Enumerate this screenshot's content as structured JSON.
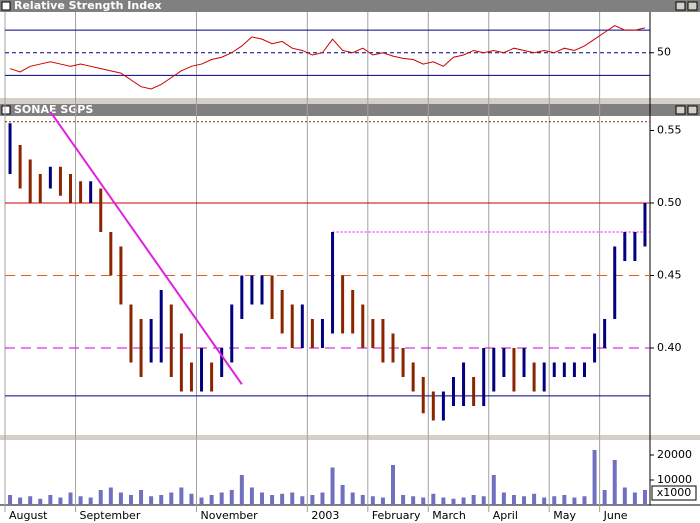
{
  "chart_data": [
    {
      "type": "line",
      "title": "Relative Strength Index",
      "color": "#cc0000",
      "values": [
        36,
        33,
        38,
        40,
        42,
        40,
        38,
        40,
        38,
        36,
        34,
        32,
        26,
        20,
        18,
        22,
        28,
        34,
        38,
        40,
        44,
        46,
        50,
        56,
        64,
        62,
        58,
        60,
        54,
        52,
        48,
        50,
        62,
        52,
        50,
        54,
        48,
        50,
        47,
        45,
        44,
        40,
        42,
        38,
        46,
        48,
        52,
        50,
        52,
        50,
        54,
        52,
        50,
        52,
        50,
        54,
        52,
        56,
        62,
        68,
        74,
        70,
        70,
        72
      ],
      "ylim": [
        10,
        86
      ],
      "yticks": [
        50
      ],
      "lines": [
        {
          "value": 70,
          "color": "#000080",
          "dash": "none"
        },
        {
          "value": 50,
          "color": "#000080",
          "dash": "4,3"
        },
        {
          "value": 30,
          "color": "#000080",
          "dash": "none"
        }
      ]
    },
    {
      "type": "range",
      "title": "SONAE SGPS",
      "up_color": "#000080",
      "down_color": "#8b2500",
      "high": [
        0.555,
        0.54,
        0.53,
        0.52,
        0.525,
        0.525,
        0.52,
        0.515,
        0.515,
        0.51,
        0.48,
        0.47,
        0.43,
        0.42,
        0.42,
        0.44,
        0.43,
        0.41,
        0.39,
        0.4,
        0.39,
        0.4,
        0.43,
        0.45,
        0.45,
        0.45,
        0.45,
        0.44,
        0.43,
        0.43,
        0.42,
        0.42,
        0.48,
        0.45,
        0.44,
        0.43,
        0.42,
        0.42,
        0.41,
        0.4,
        0.39,
        0.38,
        0.37,
        0.37,
        0.38,
        0.39,
        0.38,
        0.4,
        0.4,
        0.4,
        0.4,
        0.4,
        0.39,
        0.39,
        0.39,
        0.39,
        0.39,
        0.39,
        0.41,
        0.42,
        0.47,
        0.48,
        0.48,
        0.5
      ],
      "low": [
        0.52,
        0.51,
        0.5,
        0.5,
        0.51,
        0.505,
        0.5,
        0.5,
        0.5,
        0.48,
        0.45,
        0.43,
        0.39,
        0.38,
        0.39,
        0.39,
        0.38,
        0.37,
        0.37,
        0.37,
        0.37,
        0.38,
        0.39,
        0.42,
        0.43,
        0.43,
        0.42,
        0.41,
        0.4,
        0.4,
        0.4,
        0.4,
        0.41,
        0.41,
        0.41,
        0.4,
        0.4,
        0.39,
        0.39,
        0.38,
        0.37,
        0.355,
        0.35,
        0.35,
        0.36,
        0.36,
        0.36,
        0.36,
        0.37,
        0.38,
        0.37,
        0.38,
        0.37,
        0.37,
        0.38,
        0.38,
        0.38,
        0.38,
        0.39,
        0.4,
        0.42,
        0.46,
        0.46,
        0.47
      ],
      "ylim": [
        0.34,
        0.56
      ],
      "yticks": [
        {
          "value": 0.4,
          "label": "0.40"
        },
        {
          "value": 0.45,
          "label": "0.45"
        },
        {
          "value": 0.5,
          "label": "0.50"
        },
        {
          "value": 0.55,
          "label": "0.55"
        }
      ],
      "lines": [
        {
          "value": 0.556,
          "color": "#8b2500",
          "dash": "2,2"
        },
        {
          "value": 0.5,
          "color": "#cc0000",
          "dash": "none"
        },
        {
          "value": 0.45,
          "color": "#e06020",
          "dash": "10,6"
        },
        {
          "value": 0.4,
          "color": "#cc00cc",
          "dash": "10,6"
        },
        {
          "value": 0.367,
          "color": "#000080",
          "dash": "none"
        },
        {
          "value": 0.48,
          "color": "#ff00ff",
          "dash": "2,2",
          "start": 32
        }
      ],
      "trendline": {
        "x": [
          4,
          23
        ],
        "values": [
          0.563,
          0.375
        ],
        "color": "#e020e0"
      }
    },
    {
      "type": "bar",
      "color": "#7070c0",
      "unit_label": "x1000",
      "categories": [
        "August",
        null,
        null,
        null,
        null,
        null,
        null,
        "September",
        null,
        null,
        null,
        null,
        null,
        null,
        null,
        null,
        null,
        null,
        null,
        "November",
        null,
        null,
        null,
        null,
        null,
        null,
        null,
        null,
        null,
        null,
        "2003",
        null,
        null,
        null,
        null,
        null,
        "February",
        null,
        null,
        null,
        null,
        null,
        "March",
        null,
        null,
        null,
        null,
        null,
        "April",
        null,
        null,
        null,
        null,
        null,
        "May",
        null,
        null,
        null,
        null,
        "June",
        null,
        null,
        null,
        null
      ],
      "values": [
        4000,
        3000,
        3500,
        2500,
        4000,
        3000,
        5000,
        3500,
        3000,
        6000,
        7000,
        5000,
        4000,
        6000,
        3500,
        4000,
        5000,
        7000,
        4500,
        3000,
        4000,
        5000,
        6000,
        12000,
        7000,
        5000,
        4000,
        4500,
        5000,
        3500,
        4000,
        5000,
        15000,
        8000,
        5000,
        4000,
        3500,
        3000,
        16000,
        4000,
        3500,
        3000,
        4500,
        3000,
        2500,
        3000,
        4000,
        3500,
        12000,
        5000,
        4000,
        3500,
        4500,
        3000,
        3500,
        4000,
        3000,
        3500,
        22000,
        6000,
        18000,
        7000,
        5000,
        6000
      ],
      "ylim": [
        0,
        26000
      ],
      "yticks": [
        10000,
        20000
      ]
    }
  ]
}
